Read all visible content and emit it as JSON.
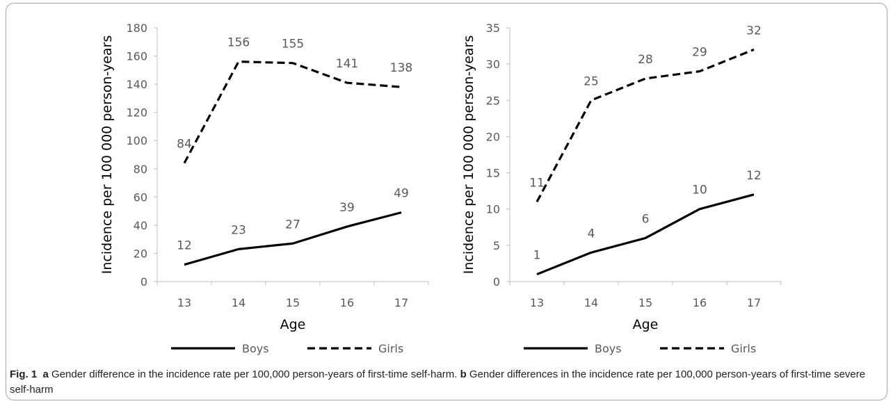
{
  "chart_data": [
    {
      "type": "line",
      "categories": [
        "13",
        "14",
        "15",
        "16",
        "17"
      ],
      "xlabel": "Age",
      "ylabel": "Incidence per 100 000 person-years",
      "ylim": [
        0,
        180
      ],
      "yticks": [
        "0",
        "20",
        "40",
        "60",
        "80",
        "100",
        "120",
        "140",
        "160",
        "180"
      ],
      "series": [
        {
          "name": "Boys",
          "values": [
            12,
            23,
            27,
            39,
            49
          ],
          "style": "solid",
          "color": "#000000"
        },
        {
          "name": "Girls",
          "values": [
            84,
            156,
            155,
            141,
            138
          ],
          "style": "dashed",
          "color": "#000000"
        }
      ],
      "legend": "bottom"
    },
    {
      "type": "line",
      "categories": [
        "13",
        "14",
        "15",
        "16",
        "17"
      ],
      "xlabel": "Age",
      "ylabel": "Incidence per 100 000 person-years",
      "ylim": [
        0,
        35
      ],
      "yticks": [
        "0",
        "5",
        "10",
        "15",
        "20",
        "25",
        "30",
        "35"
      ],
      "series": [
        {
          "name": "Boys",
          "values": [
            1,
            4,
            6,
            10,
            12
          ],
          "style": "solid",
          "color": "#000000"
        },
        {
          "name": "Girls",
          "values": [
            11,
            25,
            28,
            29,
            32
          ],
          "style": "dashed",
          "color": "#000000"
        }
      ],
      "legend": "bottom"
    }
  ],
  "caption": {
    "fig_label": "Fig. 1",
    "a_letter": "a",
    "a_text": "Gender difference in the incidence rate per 100,000 person-years of first-time self-harm.",
    "b_letter": "b",
    "b_text": "Gender differences in the incidence rate per 100,000 person-years of first-time severe self-harm"
  }
}
